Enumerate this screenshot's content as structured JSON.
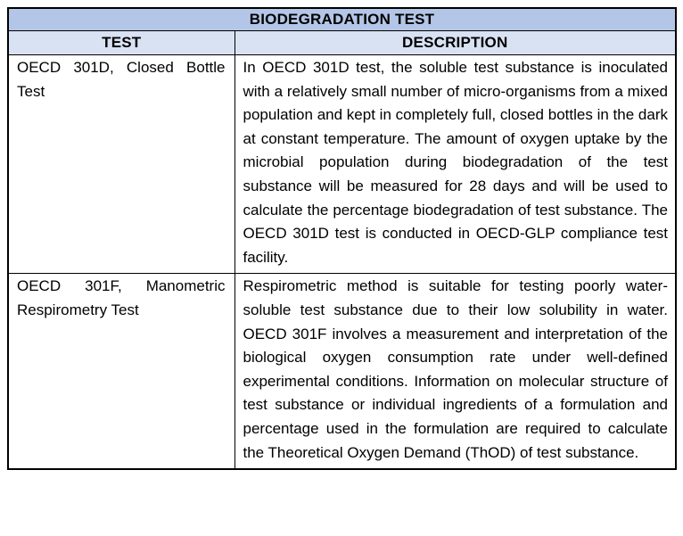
{
  "table": {
    "title": "BIODEGRADATION TEST",
    "columns": {
      "test": "TEST",
      "description": "DESCRIPTION"
    },
    "rows": [
      {
        "test": "OECD 301D, Closed Bottle Test",
        "description": "In OECD 301D test, the soluble test substance is inoculated with a relatively small number of micro-organisms from a mixed population and kept in completely full, closed bottles in the dark at constant temperature. The amount of oxygen uptake by the microbial population during biodegradation of the test substance will be measured for 28 days and will be used to calculate the percentage biodegradation of test substance. The OECD 301D test is conducted in OECD-GLP compliance test facility."
      },
      {
        "test": "OECD 301F, Manometric Respirometry Test",
        "description": "Respirometric method is suitable for testing poorly water-soluble test substance due to their low solubility in water. OECD 301F involves a measurement and interpretation of the biological oxygen consumption rate under well-defined experimental conditions. Information on molecular structure of test substance or individual ingredients of a formulation and percentage used in the formulation are required to calculate the Theoretical Oxygen Demand (ThOD) of test substance."
      }
    ],
    "colors": {
      "title_bg": "#B4C6E7",
      "header_bg": "#D9E2F3",
      "border": "#000000",
      "text": "#000000",
      "page_bg": "#FFFFFF"
    }
  }
}
